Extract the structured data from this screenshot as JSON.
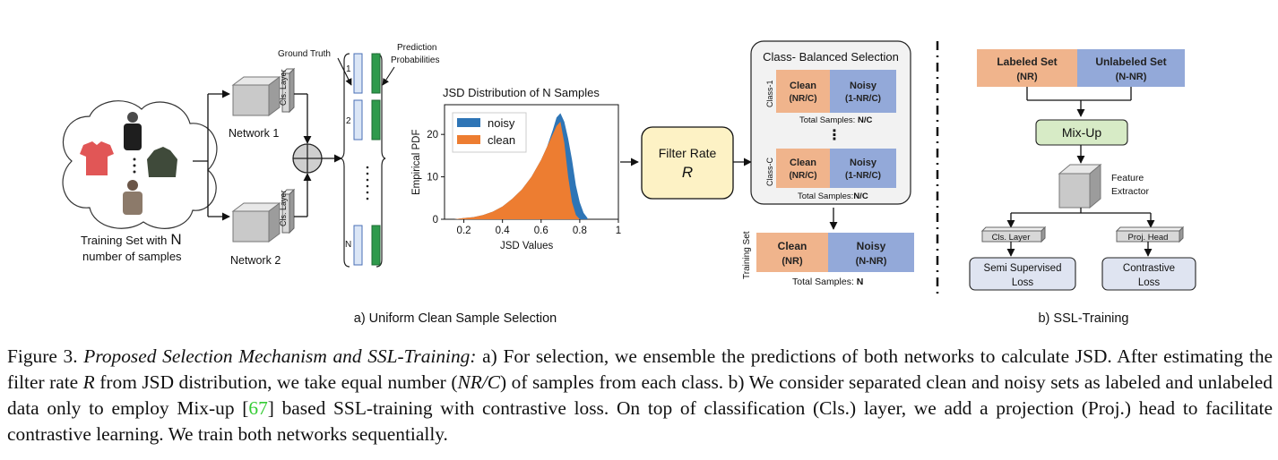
{
  "figure": {
    "training_set_label_1": "Training Set with",
    "training_set_label_N": "N",
    "training_set_label_2": "number of samples",
    "ellipsis_vertical": "·",
    "network_1": "Network 1",
    "network_2": "Network 2",
    "cls_layer": "Cls. Layer",
    "ground_truth": "Ground Truth",
    "prediction_1": "Prediction",
    "prediction_2": "Probabilities",
    "row_labels": [
      "1",
      "2",
      "N"
    ],
    "dots_vertical": "⋮",
    "filter_rate": "Filter Rate",
    "filter_R": "R",
    "class_balanced_title": "Class- Balanced Selection",
    "class_1": "Class-1",
    "class_c": "Class-C",
    "clean": "Clean",
    "clean_frac": "(NR/C)",
    "noisy": "Noisy",
    "noisy_frac": "(1-NR/C)",
    "total_nc_1": "Total Samples: ",
    "total_nc_1_bold": "N/C",
    "total_nc_2": "Total Samples:",
    "total_nc_2_bold": "N/C",
    "training_set_vertical": "Training Set",
    "final_clean": "Clean",
    "final_clean_sub": "(NR)",
    "final_noisy": "Noisy",
    "final_noisy_sub": "(N-NR)",
    "final_total": "Total Samples: ",
    "final_total_bold": "N",
    "part_a_caption": "a) Uniform Clean Sample Selection",
    "labeled_set": "Labeled Set",
    "labeled_sub": "(NR)",
    "unlabeled_set": "Unlabeled Set",
    "unlabeled_sub": "(N-NR)",
    "mixup": "Mix-Up",
    "feature_1": "Feature",
    "feature_2": "Extractor",
    "proj_head": "Proj. Head",
    "semi_1": "Semi Supervised",
    "semi_2": "Loss",
    "contrastive_1": "Contrastive",
    "contrastive_2": "Loss",
    "part_b_caption": "b) SSL-Training",
    "colors": {
      "clean": "#f0b48c",
      "noisy": "#93a9d9",
      "mixup": "#d7ebc6",
      "filter": "#fdf2c5",
      "loss": "#dfe4f1",
      "noisy_hist": "#2e75b6",
      "clean_hist": "#ed7d31",
      "prob_blue": "#dbe6f6",
      "prob_green": "#2f9a4c"
    }
  },
  "chart_data": {
    "type": "area",
    "title": "JSD Distribution of N Samples",
    "xlabel": "JSD Values",
    "ylabel": "Empirical PDF",
    "xlim": [
      0.1,
      1.0
    ],
    "ylim": [
      0,
      27
    ],
    "xticks": [
      "0.2",
      "0.4",
      "0.6",
      "0.8",
      "1"
    ],
    "yticks": [
      "0",
      "10",
      "20"
    ],
    "legend_position": "top-left",
    "series": [
      {
        "name": "noisy",
        "x": [
          0.15,
          0.2,
          0.25,
          0.3,
          0.35,
          0.4,
          0.45,
          0.5,
          0.55,
          0.6,
          0.63,
          0.66,
          0.68,
          0.7,
          0.72,
          0.74,
          0.76,
          0.78,
          0.8,
          0.82,
          0.84
        ],
        "y": [
          0,
          0.3,
          0.5,
          1,
          1.8,
          3,
          4.8,
          7,
          10,
          14,
          17,
          21,
          24,
          25,
          23,
          19,
          14,
          8,
          4,
          1.5,
          0.3
        ]
      },
      {
        "name": "clean",
        "x": [
          0.15,
          0.2,
          0.25,
          0.3,
          0.35,
          0.4,
          0.45,
          0.5,
          0.55,
          0.6,
          0.63,
          0.66,
          0.68,
          0.7,
          0.72,
          0.74,
          0.76,
          0.78,
          0.8
        ],
        "y": [
          0,
          0.3,
          0.5,
          1,
          1.8,
          3,
          4.8,
          7,
          10,
          14,
          17,
          20,
          22,
          23,
          18,
          10,
          4,
          1,
          0
        ]
      }
    ]
  },
  "caption": {
    "prefix": "Figure 3. ",
    "lead": "Proposed Selection Mechanism and SSL-Training:",
    "part1": " a) For selection, we ensemble the predictions of both networks to calculate JSD. After estimating the filter rate ",
    "var_R": "R",
    "part2": " from JSD distribution, we take equal number (",
    "var_NRC": "NR/C",
    "part3": ") of samples from each class. b) We consider separated clean and noisy sets as labeled and unlabeled data only to employ Mix-up [",
    "ref": "67",
    "part4": "] based SSL-training with contrastive loss. On top of classification (Cls.) layer, we add a projection (Proj.) head to facilitate contrastive learning. We train both networks sequentially."
  }
}
